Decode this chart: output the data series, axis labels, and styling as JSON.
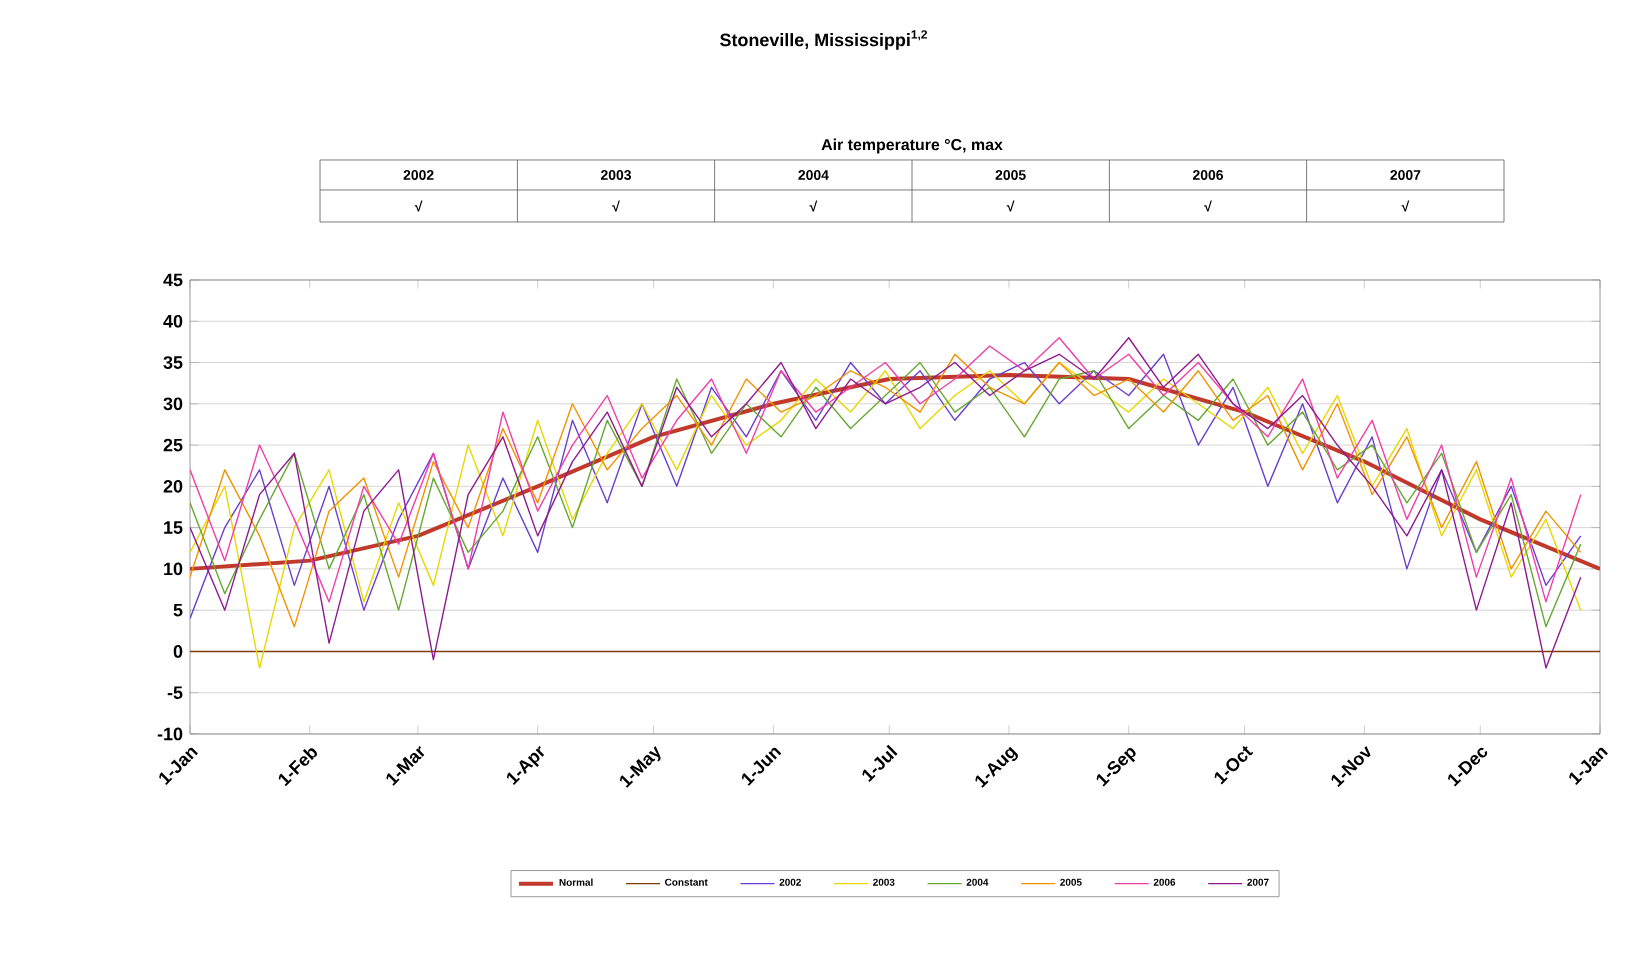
{
  "chart_data": {
    "type": "line",
    "title": "Stoneville, Mississippi$^{1,2}$",
    "subtitle": "Air temperature °C, max",
    "annotations": [
      "2002",
      "2003",
      "2004",
      "2005",
      "2006",
      "2007",
      "√",
      "√",
      "√",
      "√",
      "√",
      "√"
    ],
    "x": [
      "2001-01-01",
      "2001-01-10",
      "2001-01-19",
      "2001-01-28",
      "2001-02-06",
      "2001-02-15",
      "2001-02-24",
      "2001-03-05",
      "2001-03-14",
      "2001-03-23",
      "2001-04-01",
      "2001-04-10",
      "2001-04-19",
      "2001-04-28",
      "2001-05-07",
      "2001-05-16",
      "2001-05-25",
      "2001-06-03",
      "2001-06-12",
      "2001-06-21",
      "2001-06-30",
      "2001-07-09",
      "2001-07-18",
      "2001-07-27",
      "2001-08-05",
      "2001-08-14",
      "2001-08-23",
      "2001-09-01",
      "2001-09-10",
      "2001-09-19",
      "2001-09-28",
      "2001-10-07",
      "2001-10-16",
      "2001-10-25",
      "2001-11-03",
      "2001-11-12",
      "2001-11-21",
      "2001-11-30",
      "2001-12-09",
      "2001-12-18",
      "2001-12-27"
    ],
    "xlim": [
      "2001-01-01",
      "2002-01-01"
    ],
    "xticks": [
      {
        "value": "2001-01-01",
        "label": "1-Jan"
      },
      {
        "value": "2001-02-01",
        "label": "1-Feb"
      },
      {
        "value": "2001-03-01",
        "label": "1-Mar"
      },
      {
        "value": "2001-04-01",
        "label": "1-Apr"
      },
      {
        "value": "2001-05-01",
        "label": "1-May"
      },
      {
        "value": "2001-06-01",
        "label": "1-Jun"
      },
      {
        "value": "2001-07-01",
        "label": "1-Jul"
      },
      {
        "value": "2001-08-01",
        "label": "1-Aug"
      },
      {
        "value": "2001-09-01",
        "label": "1-Sep"
      },
      {
        "value": "2001-10-01",
        "label": "1-Oct"
      },
      {
        "value": "2001-11-01",
        "label": "1-Nov"
      },
      {
        "value": "2001-12-01",
        "label": "1-Dec"
      },
      {
        "value": "2002-01-01",
        "label": "1-Jan"
      }
    ],
    "ylim": [
      -10,
      45
    ],
    "yticks": [
      -10,
      -5,
      0,
      5,
      10,
      15,
      20,
      25,
      30,
      35,
      40,
      45
    ],
    "grid": "y",
    "legend": "bottom",
    "series": [
      {
        "name": "Normal",
        "color": "#c0392b",
        "x": [
          "2001-01-01",
          "2001-02-01",
          "2001-03-01",
          "2001-04-01",
          "2001-05-01",
          "2001-06-01",
          "2001-07-01",
          "2001-08-01",
          "2001-09-01",
          "2001-10-01",
          "2001-11-01",
          "2001-12-01",
          "2002-01-01"
        ],
        "values": [
          10,
          11,
          14,
          20,
          26,
          30,
          33,
          33.5,
          33,
          29,
          23,
          16,
          10
        ]
      },
      {
        "name": "Constant",
        "color": "#7f3f00",
        "x": [
          "2001-01-01",
          "2002-01-01"
        ],
        "values": [
          0,
          0
        ]
      },
      {
        "name": "2002",
        "color": "#6a3fd0",
        "values": [
          4,
          15,
          22,
          8,
          20,
          5,
          16,
          24,
          10,
          21,
          12,
          28,
          18,
          30,
          20,
          32,
          26,
          34,
          28,
          35,
          30,
          34,
          28,
          33,
          35,
          30,
          34,
          31,
          36,
          25,
          32,
          20,
          30,
          18,
          26,
          10,
          22,
          12,
          20,
          8,
          14
        ]
      },
      {
        "name": "2003",
        "color": "#e6d800",
        "values": [
          12,
          20,
          -2,
          15,
          22,
          6,
          18,
          8,
          25,
          14,
          28,
          16,
          24,
          30,
          22,
          31,
          25,
          28,
          33,
          29,
          34,
          27,
          31,
          34,
          30,
          35,
          32,
          29,
          33,
          30,
          27,
          32,
          24,
          31,
          20,
          27,
          14,
          22,
          9,
          16,
          5
        ]
      },
      {
        "name": "2004",
        "color": "#66a832",
        "values": [
          18,
          7,
          16,
          24,
          10,
          19,
          5,
          21,
          12,
          17,
          26,
          15,
          28,
          20,
          33,
          24,
          30,
          26,
          32,
          27,
          31,
          35,
          29,
          32,
          26,
          33,
          34,
          27,
          31,
          28,
          33,
          25,
          29,
          22,
          25,
          18,
          24,
          12,
          19,
          3,
          13
        ]
      },
      {
        "name": "2005",
        "color": "#f39200",
        "values": [
          9,
          22,
          14,
          3,
          17,
          21,
          9,
          23,
          15,
          27,
          18,
          30,
          22,
          27,
          31,
          25,
          33,
          29,
          31,
          34,
          32,
          29,
          36,
          32,
          30,
          35,
          31,
          33,
          29,
          34,
          28,
          31,
          22,
          30,
          19,
          26,
          15,
          23,
          10,
          17,
          12
        ]
      },
      {
        "name": "2006",
        "color": "#ee3fa8",
        "values": [
          22,
          11,
          25,
          16,
          6,
          20,
          13,
          24,
          10,
          29,
          17,
          25,
          31,
          21,
          28,
          33,
          24,
          34,
          29,
          32,
          35,
          30,
          33,
          37,
          34,
          38,
          33,
          36,
          31,
          35,
          30,
          26,
          33,
          21,
          28,
          16,
          25,
          9,
          21,
          6,
          19
        ]
      },
      {
        "name": "2007",
        "color": "#8e1a8e",
        "values": [
          15,
          5,
          19,
          24,
          1,
          17,
          22,
          -1,
          19,
          26,
          14,
          23,
          29,
          20,
          32,
          26,
          30,
          35,
          27,
          33,
          30,
          32,
          35,
          31,
          34,
          36,
          33,
          38,
          32,
          36,
          30,
          27,
          31,
          25,
          20,
          14,
          22,
          5,
          18,
          -2,
          9
        ]
      }
    ]
  }
}
